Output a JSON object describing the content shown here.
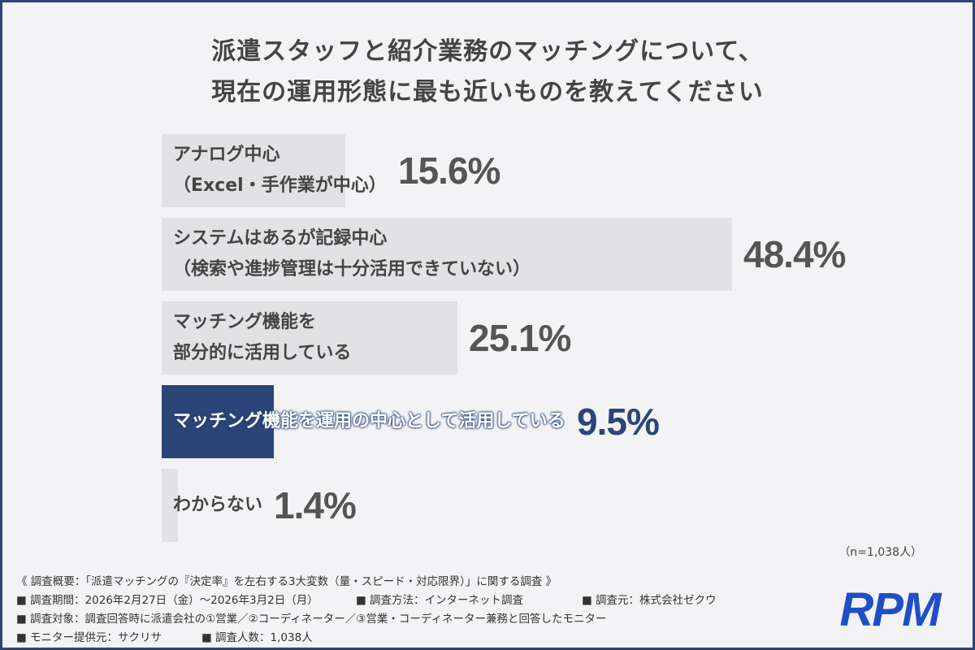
{
  "title": {
    "line1": "派遣スタッフと紹介業務のマッチングについて、",
    "line2": "現在の運用形態に最も近いものを教えてください"
  },
  "chart_data": {
    "type": "bar",
    "orientation": "horizontal",
    "title": "派遣スタッフと紹介業務のマッチングについて、現在の運用形態に最も近いものを教えてください",
    "categories": [
      "アナログ中心（Excel・手作業が中心）",
      "システムはあるが記録中心（検索や進捗管理は十分活用できていない）",
      "マッチング機能を部分的に活用している",
      "マッチング機能を運用の中心として活用している",
      "わからない"
    ],
    "category_lines": [
      [
        "アナログ中心",
        "（Excel・手作業が中心）"
      ],
      [
        "システムはあるが記録中心",
        "（検索や進捗管理は十分活用できていない）"
      ],
      [
        "マッチング機能を",
        "部分的に活用している"
      ],
      [
        "マッチング機能を運用の中心として活用している"
      ],
      [
        "わからない"
      ]
    ],
    "values": [
      15.6,
      48.4,
      25.1,
      9.5,
      1.4
    ],
    "value_labels": [
      "15.6%",
      "48.4%",
      "25.1%",
      "9.5%",
      "1.4%"
    ],
    "highlight_index": 3,
    "colors": {
      "bar": "#e2e1e4",
      "highlight": "#2b4578",
      "value_text": "#555555",
      "highlight_text": "#2b4578"
    },
    "grid": false,
    "legend": "none"
  },
  "sample_note": "（n=1,038人）",
  "footer": {
    "summary": "《 調査概要：「派遣マッチングの『決定率』を左右する3大変数（量・スピード・対応限界）」に関する調査 》",
    "period": "■ 調査期間：2026年2月27日（金）〜2026年3月2日（月）",
    "method": "■ 調査方法：インターネット調査",
    "organizer": "■ 調査元：株式会社ゼクウ",
    "target": "■ 調査対象：調査回答時に派遣会社の①営業／②コーディネーター／③営業・コーディネーター兼務と回答したモニター",
    "provider": "■ モニター提供元：サクリサ",
    "count": "■ 調査人数：1,038人"
  },
  "logo": {
    "text": "RPM",
    "color": "#1f4fc8"
  }
}
